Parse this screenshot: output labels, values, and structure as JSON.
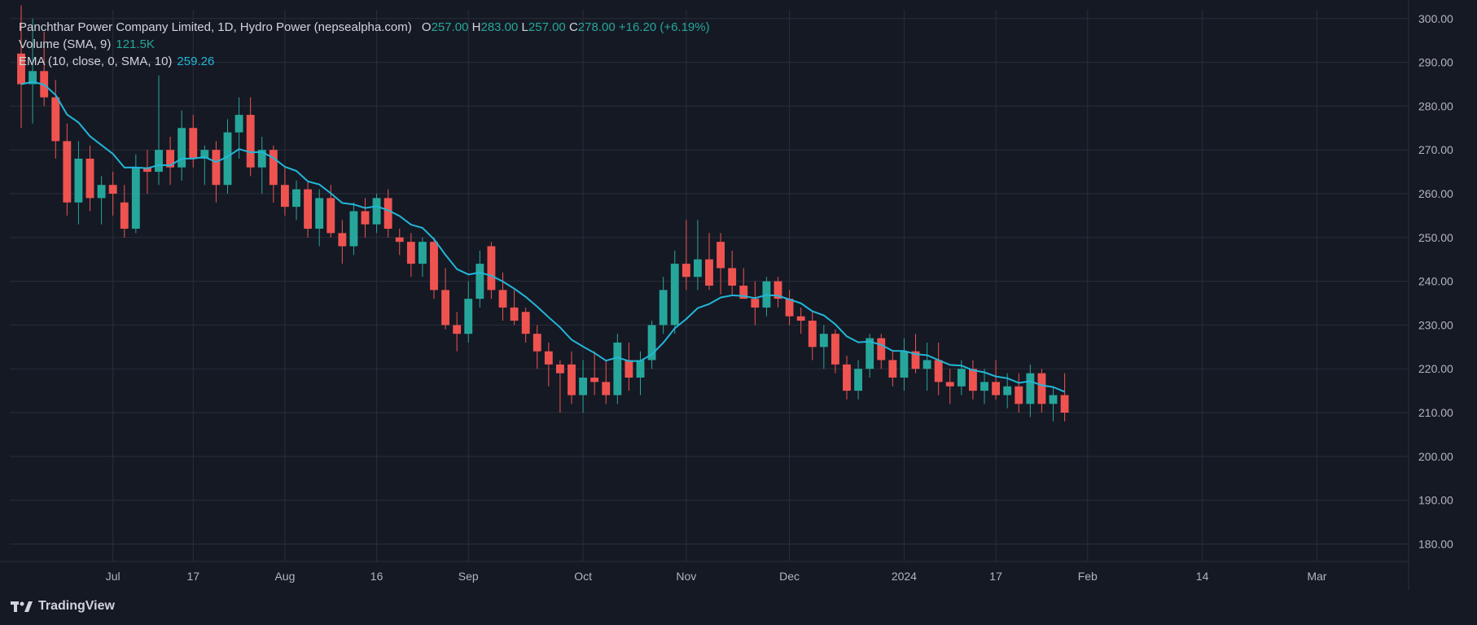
{
  "legend": {
    "title": "Panchthar Power Company Limited, 1D, Hydro Power (nepsealpha.com)",
    "ohlc": {
      "o_label": "O",
      "o": "257.00",
      "h_label": "H",
      "h": "283.00",
      "l_label": "L",
      "l": "257.00",
      "c_label": "C",
      "c": "278.00",
      "change": "+16.20 (+6.19%)"
    },
    "volume_label": "Volume (SMA, 9)",
    "volume_value": "121.5K",
    "ema_label": "EMA (10, close, 0, SMA, 10)",
    "ema_value": "259.26"
  },
  "branding": "TradingView",
  "colors": {
    "bg": "#151924",
    "up": "#26a69a",
    "down": "#ef5350",
    "ema": "#22b7d8",
    "grid": "#2a2e39",
    "text": "#b2b5be",
    "red_line": "#f23645",
    "green_line": "#4caf50"
  },
  "chart_data": {
    "type": "candlestick",
    "symbol": "Panchthar Power Company Limited",
    "interval": "1D",
    "y_axis": {
      "min": 176,
      "max": 302,
      "ticks": [
        180,
        190,
        200,
        210,
        220,
        230,
        240,
        250,
        260,
        270,
        280,
        290,
        300
      ],
      "tick_labels": [
        "180.00",
        "190.00",
        "200.00",
        "210.00",
        "220.00",
        "230.00",
        "240.00",
        "250.00",
        "260.00",
        "270.00",
        "280.00",
        "290.00",
        "300.00"
      ]
    },
    "x_axis_labels": [
      {
        "label": "Jul",
        "day": 8
      },
      {
        "label": "17",
        "day": 15
      },
      {
        "label": "Aug",
        "day": 23
      },
      {
        "label": "16",
        "day": 31
      },
      {
        "label": "Sep",
        "day": 39
      },
      {
        "label": "Oct",
        "day": 49
      },
      {
        "label": "Nov",
        "day": 58
      },
      {
        "label": "Dec",
        "day": 67
      },
      {
        "label": "2024",
        "day": 77
      },
      {
        "label": "17",
        "day": 85
      },
      {
        "label": "Feb",
        "day": 93
      },
      {
        "label": "14",
        "day": 103
      },
      {
        "label": "Mar",
        "day": 113
      }
    ],
    "x_range": {
      "first_day": 0,
      "last_day": 120
    },
    "candles": [
      {
        "d": 0,
        "o": 292,
        "h": 303,
        "l": 275,
        "c": 285
      },
      {
        "d": 1,
        "o": 285,
        "h": 300,
        "l": 276,
        "c": 288
      },
      {
        "d": 2,
        "o": 288,
        "h": 297,
        "l": 280,
        "c": 282
      },
      {
        "d": 3,
        "o": 282,
        "h": 286,
        "l": 268,
        "c": 272
      },
      {
        "d": 4,
        "o": 272,
        "h": 276,
        "l": 255,
        "c": 258
      },
      {
        "d": 5,
        "o": 258,
        "h": 272,
        "l": 253,
        "c": 268
      },
      {
        "d": 6,
        "o": 268,
        "h": 271,
        "l": 256,
        "c": 259
      },
      {
        "d": 7,
        "o": 259,
        "h": 264,
        "l": 253,
        "c": 262
      },
      {
        "d": 8,
        "o": 262,
        "h": 265,
        "l": 255,
        "c": 260
      },
      {
        "d": 9,
        "o": 258,
        "h": 262,
        "l": 250,
        "c": 252
      },
      {
        "d": 10,
        "o": 252,
        "h": 269,
        "l": 251,
        "c": 266
      },
      {
        "d": 11,
        "o": 266,
        "h": 270,
        "l": 260,
        "c": 265
      },
      {
        "d": 12,
        "o": 265,
        "h": 287,
        "l": 262,
        "c": 270
      },
      {
        "d": 13,
        "o": 270,
        "h": 273,
        "l": 262,
        "c": 266
      },
      {
        "d": 14,
        "o": 266,
        "h": 279,
        "l": 263,
        "c": 275
      },
      {
        "d": 15,
        "o": 275,
        "h": 278,
        "l": 266,
        "c": 268
      },
      {
        "d": 16,
        "o": 268,
        "h": 271,
        "l": 262,
        "c": 270
      },
      {
        "d": 17,
        "o": 270,
        "h": 272,
        "l": 258,
        "c": 262
      },
      {
        "d": 18,
        "o": 262,
        "h": 277,
        "l": 260,
        "c": 274
      },
      {
        "d": 19,
        "o": 274,
        "h": 282,
        "l": 268,
        "c": 278
      },
      {
        "d": 20,
        "o": 278,
        "h": 282,
        "l": 264,
        "c": 266
      },
      {
        "d": 21,
        "o": 266,
        "h": 273,
        "l": 260,
        "c": 270
      },
      {
        "d": 22,
        "o": 270,
        "h": 271,
        "l": 258,
        "c": 262
      },
      {
        "d": 23,
        "o": 262,
        "h": 266,
        "l": 255,
        "c": 257
      },
      {
        "d": 24,
        "o": 257,
        "h": 263,
        "l": 254,
        "c": 261
      },
      {
        "d": 25,
        "o": 261,
        "h": 263,
        "l": 250,
        "c": 252
      },
      {
        "d": 26,
        "o": 252,
        "h": 261,
        "l": 248,
        "c": 259
      },
      {
        "d": 27,
        "o": 259,
        "h": 262,
        "l": 250,
        "c": 251
      },
      {
        "d": 28,
        "o": 251,
        "h": 254,
        "l": 244,
        "c": 248
      },
      {
        "d": 29,
        "o": 248,
        "h": 258,
        "l": 246,
        "c": 256
      },
      {
        "d": 30,
        "o": 256,
        "h": 259,
        "l": 250,
        "c": 253
      },
      {
        "d": 31,
        "o": 253,
        "h": 260,
        "l": 251,
        "c": 259
      },
      {
        "d": 32,
        "o": 259,
        "h": 261,
        "l": 250,
        "c": 252
      },
      {
        "d": 33,
        "o": 250,
        "h": 252,
        "l": 246,
        "c": 249
      },
      {
        "d": 34,
        "o": 249,
        "h": 251,
        "l": 241,
        "c": 244
      },
      {
        "d": 35,
        "o": 244,
        "h": 250,
        "l": 241,
        "c": 249
      },
      {
        "d": 36,
        "o": 249,
        "h": 250,
        "l": 236,
        "c": 238
      },
      {
        "d": 37,
        "o": 238,
        "h": 243,
        "l": 229,
        "c": 230
      },
      {
        "d": 38,
        "o": 230,
        "h": 233,
        "l": 224,
        "c": 228
      },
      {
        "d": 39,
        "o": 228,
        "h": 240,
        "l": 226,
        "c": 236
      },
      {
        "d": 40,
        "o": 236,
        "h": 247,
        "l": 234,
        "c": 244
      },
      {
        "d": 41,
        "o": 248,
        "h": 249,
        "l": 236,
        "c": 238
      },
      {
        "d": 42,
        "o": 238,
        "h": 242,
        "l": 231,
        "c": 234
      },
      {
        "d": 43,
        "o": 234,
        "h": 238,
        "l": 230,
        "c": 231
      },
      {
        "d": 44,
        "o": 233,
        "h": 234,
        "l": 226,
        "c": 228
      },
      {
        "d": 45,
        "o": 228,
        "h": 230,
        "l": 220,
        "c": 224
      },
      {
        "d": 46,
        "o": 224,
        "h": 226,
        "l": 216,
        "c": 221
      },
      {
        "d": 47,
        "o": 221,
        "h": 222,
        "l": 210,
        "c": 219
      },
      {
        "d": 48,
        "o": 221,
        "h": 224,
        "l": 212,
        "c": 214
      },
      {
        "d": 49,
        "o": 214,
        "h": 222,
        "l": 210,
        "c": 218
      },
      {
        "d": 50,
        "o": 218,
        "h": 224,
        "l": 214,
        "c": 217
      },
      {
        "d": 51,
        "o": 217,
        "h": 222,
        "l": 212,
        "c": 214
      },
      {
        "d": 52,
        "o": 214,
        "h": 228,
        "l": 212,
        "c": 226
      },
      {
        "d": 53,
        "o": 222,
        "h": 226,
        "l": 215,
        "c": 218
      },
      {
        "d": 54,
        "o": 218,
        "h": 224,
        "l": 214,
        "c": 222
      },
      {
        "d": 55,
        "o": 222,
        "h": 231,
        "l": 220,
        "c": 230
      },
      {
        "d": 56,
        "o": 230,
        "h": 241,
        "l": 228,
        "c": 238
      },
      {
        "d": 57,
        "o": 230,
        "h": 247,
        "l": 228,
        "c": 244
      },
      {
        "d": 58,
        "o": 244,
        "h": 254,
        "l": 238,
        "c": 241
      },
      {
        "d": 59,
        "o": 241,
        "h": 254,
        "l": 238,
        "c": 245
      },
      {
        "d": 60,
        "o": 245,
        "h": 251,
        "l": 238,
        "c": 239
      },
      {
        "d": 61,
        "o": 249,
        "h": 251,
        "l": 237,
        "c": 243
      },
      {
        "d": 62,
        "o": 243,
        "h": 247,
        "l": 237,
        "c": 239
      },
      {
        "d": 63,
        "o": 239,
        "h": 243,
        "l": 236,
        "c": 236
      }
    ],
    "note": "candles continue through January 2024",
    "candles2": [
      {
        "d": 64,
        "o": 236,
        "h": 240,
        "l": 230,
        "c": 234
      },
      {
        "d": 65,
        "o": 234,
        "h": 241,
        "l": 232,
        "c": 240
      },
      {
        "d": 66,
        "o": 240,
        "h": 241,
        "l": 234,
        "c": 236
      },
      {
        "d": 67,
        "o": 236,
        "h": 238,
        "l": 230,
        "c": 232
      },
      {
        "d": 68,
        "o": 232,
        "h": 234,
        "l": 228,
        "c": 231
      },
      {
        "d": 69,
        "o": 231,
        "h": 233,
        "l": 222,
        "c": 225
      },
      {
        "d": 70,
        "o": 225,
        "h": 230,
        "l": 220,
        "c": 228
      },
      {
        "d": 71,
        "o": 228,
        "h": 229,
        "l": 219,
        "c": 221
      },
      {
        "d": 72,
        "o": 221,
        "h": 223,
        "l": 213,
        "c": 215
      },
      {
        "d": 73,
        "o": 215,
        "h": 222,
        "l": 213,
        "c": 220
      },
      {
        "d": 74,
        "o": 220,
        "h": 228,
        "l": 218,
        "c": 227
      },
      {
        "d": 75,
        "o": 227,
        "h": 228,
        "l": 220,
        "c": 222
      },
      {
        "d": 76,
        "o": 222,
        "h": 224,
        "l": 216,
        "c": 218
      },
      {
        "d": 77,
        "o": 218,
        "h": 227,
        "l": 215,
        "c": 224
      },
      {
        "d": 78,
        "o": 224,
        "h": 228,
        "l": 219,
        "c": 220
      },
      {
        "d": 79,
        "o": 220,
        "h": 226,
        "l": 215,
        "c": 222
      },
      {
        "d": 80,
        "o": 222,
        "h": 226,
        "l": 214,
        "c": 217
      },
      {
        "d": 81,
        "o": 217,
        "h": 220,
        "l": 212,
        "c": 216
      },
      {
        "d": 82,
        "o": 216,
        "h": 222,
        "l": 214,
        "c": 220
      },
      {
        "d": 83,
        "o": 220,
        "h": 222,
        "l": 213,
        "c": 215
      },
      {
        "d": 84,
        "o": 215,
        "h": 220,
        "l": 212,
        "c": 217
      },
      {
        "d": 85,
        "o": 217,
        "h": 222,
        "l": 213,
        "c": 214
      },
      {
        "d": 86,
        "o": 214,
        "h": 219,
        "l": 211,
        "c": 216
      },
      {
        "d": 87,
        "o": 216,
        "h": 219,
        "l": 210,
        "c": 212
      },
      {
        "d": 88,
        "o": 212,
        "h": 221,
        "l": 209,
        "c": 219
      },
      {
        "d": 89,
        "o": 219,
        "h": 220,
        "l": 210,
        "c": 212
      },
      {
        "d": 90,
        "o": 212,
        "h": 216,
        "l": 208,
        "c": 214
      },
      {
        "d": 91,
        "o": 214,
        "h": 219,
        "l": 208,
        "c": 210
      }
    ]
  }
}
